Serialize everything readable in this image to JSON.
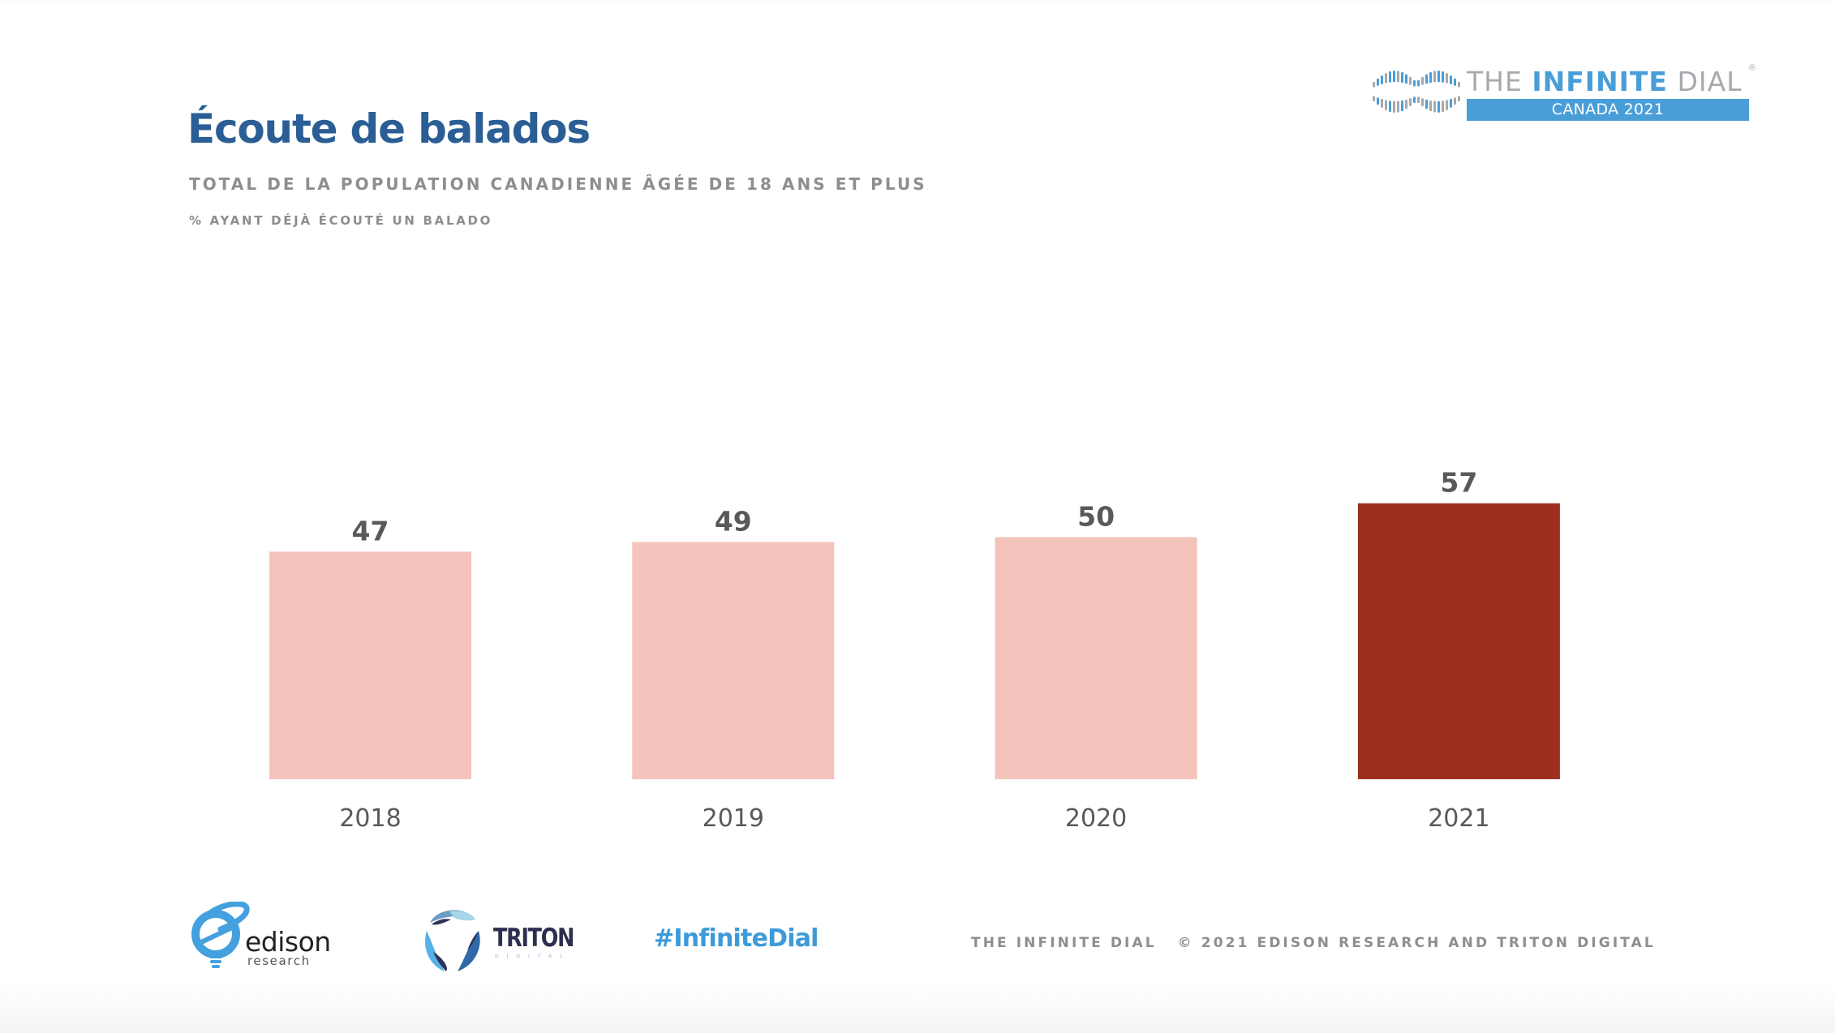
{
  "header": {
    "title": "Écoute de balados",
    "subtitle": "TOTAL DE LA POPULATION CANADIENNE ÂGÉE DE 18 ANS ET PLUS",
    "subtitle2": "% AYANT DÉJÀ ÉCOUTÉ UN BALADO"
  },
  "brand": {
    "icon": "infinity-icon",
    "wordmark_the": "THE ",
    "wordmark_infinite": "INFINITE",
    "wordmark_dial": " DIAL",
    "registered": "®",
    "edition": "CANADA 2021",
    "colors": {
      "blue": "#4a9ed8",
      "gray": "#a6a9ad"
    }
  },
  "chart_data": {
    "type": "bar",
    "title": "Écoute de balados",
    "subtitle": "TOTAL DE LA POPULATION CANADIENNE ÂGÉE DE 18 ANS ET PLUS",
    "ylabel": "% AYANT DÉJÀ ÉCOUTÉ UN BALADO",
    "xlabel": "",
    "categories": [
      "2018",
      "2019",
      "2020",
      "2021"
    ],
    "values": [
      47,
      49,
      50,
      57
    ],
    "data_labels": [
      "47",
      "49",
      "50",
      "57"
    ],
    "highlight_index": 3,
    "colors": {
      "default": "#f4c3bb",
      "highlight": "#9e2f1f",
      "label": "#595959"
    },
    "ylim": [
      0,
      57
    ],
    "grid": false,
    "legend": "none",
    "y_axis_visible": false
  },
  "footer": {
    "edison_name": "edison",
    "edison_sub": "research",
    "triton_name": "TRITON",
    "triton_sub": "DIGITAL",
    "hashtag": "#InfiniteDial",
    "brand_text": "THE INFINITE DIAL",
    "copyright": "© 2021 EDISON RESEARCH AND TRITON DIGITAL"
  }
}
